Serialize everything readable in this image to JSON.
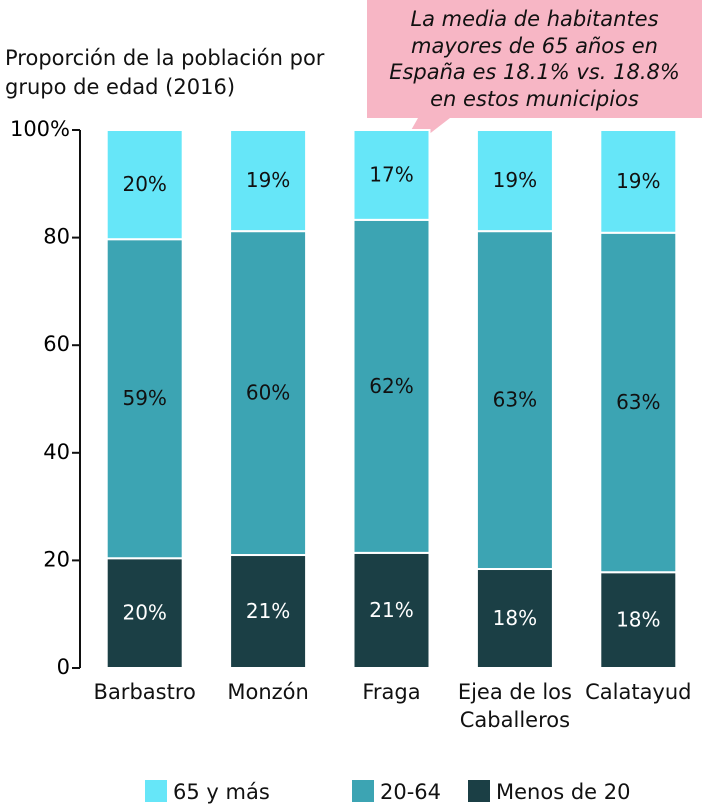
{
  "chart_data": {
    "type": "stacked-bar",
    "title": "Proporción de la población por grupo de edad (2016)",
    "annotation": "La media de habitantes mayores de 65 años en España es 18.1% vs. 18.8% en estos municipios",
    "annotation_color": "#f7b6c5",
    "categories": [
      "Barbastro",
      "Monzón",
      "Fraga",
      "Ejea de los Caballeros",
      "Calatayud"
    ],
    "series": [
      {
        "name": "Menos de 20",
        "color": "#1b3f45",
        "label_color": "#ffffff",
        "values": [
          20.4,
          21.0,
          21.4,
          18.4,
          17.8
        ],
        "value_labels": [
          "20%",
          "21%",
          "21%",
          "18%",
          "18%"
        ]
      },
      {
        "name": "20-64",
        "color": "#3ca4b3",
        "label_color": "#111111",
        "values": [
          59.3,
          60.2,
          61.9,
          62.8,
          63.1
        ],
        "value_labels": [
          "59%",
          "60%",
          "62%",
          "63%",
          "63%"
        ]
      },
      {
        "name": "65 y más",
        "color": "#66e6f8",
        "label_color": "#111111",
        "values": [
          20.3,
          18.8,
          16.7,
          18.8,
          19.1
        ],
        "value_labels": [
          "20%",
          "19%",
          "17%",
          "19%",
          "19%"
        ]
      }
    ],
    "ylim": [
      0,
      100
    ],
    "yticks": [
      0,
      20,
      40,
      60,
      80,
      {
        "value": 100,
        "label": "100%"
      }
    ],
    "grid": false
  }
}
